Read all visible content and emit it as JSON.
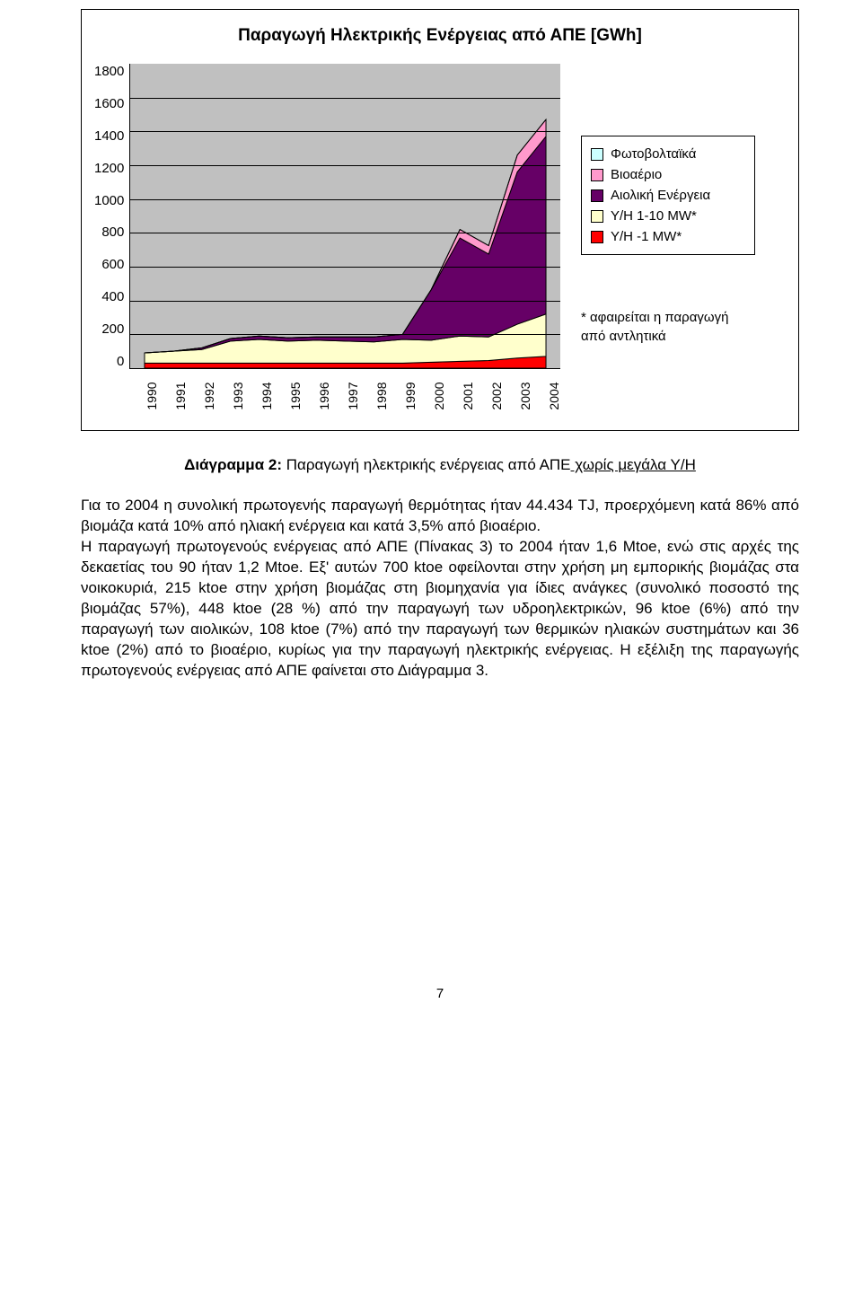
{
  "chart": {
    "type": "area-stacked",
    "title": "Παραγωγή Ηλεκτρικής Ενέργειας από ΑΠΕ [GWh]",
    "ylim": [
      0,
      1800
    ],
    "ytick_step": 200,
    "yticks": [
      "1800",
      "1600",
      "1400",
      "1200",
      "1000",
      "800",
      "600",
      "400",
      "200",
      "0"
    ],
    "years": [
      "1990",
      "1991",
      "1992",
      "1993",
      "1994",
      "1995",
      "1996",
      "1997",
      "1998",
      "1999",
      "2000",
      "2001",
      "2002",
      "2003",
      "2004"
    ],
    "plot_bg": "#c0c0c0",
    "grid_color": "#000000",
    "series": [
      {
        "name": "Υ/Η -1 MW*",
        "color": "#ff0000",
        "values": [
          30,
          30,
          30,
          30,
          30,
          30,
          30,
          30,
          30,
          30,
          35,
          40,
          45,
          60,
          70
        ]
      },
      {
        "name": "Υ/Η 1-10 MW*",
        "color": "#ffffcc",
        "values": [
          60,
          70,
          80,
          130,
          140,
          130,
          135,
          130,
          125,
          140,
          130,
          150,
          140,
          200,
          250
        ]
      },
      {
        "name": "Αιολική Ενέργεια",
        "color": "#660066",
        "values": [
          0,
          0,
          10,
          15,
          20,
          20,
          20,
          25,
          30,
          30,
          300,
          580,
          490,
          900,
          1050
        ]
      },
      {
        "name": "Βιοαέριο",
        "color": "#ff99cc",
        "values": [
          0,
          0,
          0,
          0,
          0,
          0,
          0,
          0,
          0,
          0,
          0,
          50,
          50,
          100,
          100
        ]
      },
      {
        "name": "Φωτοβολταϊκά",
        "color": "#ccffff",
        "values": [
          0,
          0,
          0,
          0,
          0,
          0,
          0,
          0,
          0,
          0,
          0,
          0,
          0,
          0,
          0
        ]
      }
    ],
    "legend": [
      {
        "label": "Φωτοβολταϊκά",
        "color": "#ccffff"
      },
      {
        "label": "Βιοαέριο",
        "color": "#ff99cc"
      },
      {
        "label": "Αιολική Ενέργεια",
        "color": "#660066"
      },
      {
        "label": "Υ/Η 1-10 MW*",
        "color": "#ffffcc"
      },
      {
        "label": "Υ/Η -1 MW*",
        "color": "#ff0000"
      }
    ],
    "note": "* αφαιρείται η παραγωγή από αντλητικά"
  },
  "caption": {
    "lead": "Διάγραμμα 2:",
    "text": " Παραγωγή ηλεκτρικής ενέργειας από ΑΠΕ",
    "ul_part": " χωρίς μεγάλα Υ/Η"
  },
  "paragraph": "Για το 2004 η συνολική πρωτογενής παραγωγή θερμότητας ήταν 44.434 TJ, προερχόμενη κατά 86% από βιομάζα κατά 10% από ηλιακή ενέργεια και κατά 3,5% από βιοαέριο.\nΗ παραγωγή πρωτογενούς ενέργειας από ΑΠΕ (Πίνακας 3) το 2004 ήταν 1,6 Mtoe, ενώ στις αρχές της δεκαετίας του 90 ήταν 1,2 Mtoe. Εξ' αυτών 700 ktoe οφείλονται στην χρήση μη εμπορικής βιομάζας στα νοικοκυριά, 215 ktoe στην χρήση βιομάζας στη βιομηχανία για ίδιες ανάγκες (συνολικό ποσοστό της βιομάζας 57%), 448 ktoe (28 %) από την παραγωγή των υδροηλεκτρικών, 96 ktoe (6%) από την παραγωγή των αιολικών, 108 ktoe (7%) από την παραγωγή των θερμικών ηλιακών συστημάτων και 36 ktoe (2%) από το βιοαέριο, κυρίως για την παραγωγή ηλεκτρικής ενέργειας. Η εξέλιξη της παραγωγής πρωτογενούς ενέργειας από ΑΠΕ φαίνεται στο Διάγραμμα 3.",
  "page_number": "7"
}
